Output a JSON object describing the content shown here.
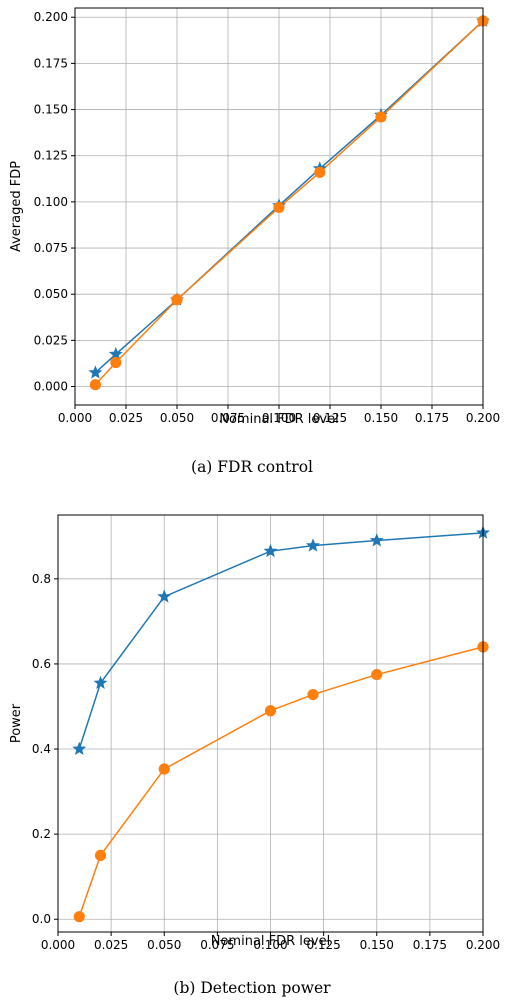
{
  "colors": {
    "series_0": "#1f77b4",
    "series_1": "#ff7f0e",
    "grid": "#b0b0b0",
    "axis": "#000000"
  },
  "chart_data": [
    {
      "type": "line",
      "caption": "(a) FDR control",
      "xlabel": "Nominal FDR level",
      "ylabel": "Averaged FDP",
      "xlim": [
        0.0,
        0.2
      ],
      "ylim": [
        -0.01,
        0.205
      ],
      "grid": true,
      "x_ticks": [
        "0.000",
        "0.025",
        "0.050",
        "0.075",
        "0.100",
        "0.125",
        "0.150",
        "0.175",
        "0.200"
      ],
      "y_ticks": [
        "0.000",
        "0.025",
        "0.050",
        "0.075",
        "0.100",
        "0.125",
        "0.150",
        "0.175",
        "0.200"
      ],
      "x": [
        0.01,
        0.02,
        0.05,
        0.1,
        0.12,
        0.15,
        0.2
      ],
      "series": [
        {
          "marker": "star",
          "color": "#1f77b4",
          "values": [
            0.0075,
            0.0175,
            0.047,
            0.098,
            0.118,
            0.147,
            0.198
          ]
        },
        {
          "marker": "circle",
          "color": "#ff7f0e",
          "values": [
            0.001,
            0.013,
            0.047,
            0.097,
            0.116,
            0.146,
            0.198
          ]
        }
      ]
    },
    {
      "type": "line",
      "caption": "(b) Detection power",
      "xlabel": "Nominal FDR level",
      "ylabel": "Power",
      "xlim": [
        0.0,
        0.2
      ],
      "ylim": [
        -0.03,
        0.95
      ],
      "grid": true,
      "x_ticks": [
        "0.000",
        "0.025",
        "0.050",
        "0.075",
        "0.100",
        "0.125",
        "0.150",
        "0.175",
        "0.200"
      ],
      "y_ticks": [
        "0.0",
        "0.2",
        "0.4",
        "0.6",
        "0.8"
      ],
      "x": [
        0.01,
        0.02,
        0.05,
        0.1,
        0.12,
        0.15,
        0.2
      ],
      "series": [
        {
          "marker": "star",
          "color": "#1f77b4",
          "values": [
            0.4,
            0.555,
            0.758,
            0.865,
            0.878,
            0.89,
            0.908
          ]
        },
        {
          "marker": "circle",
          "color": "#ff7f0e",
          "values": [
            0.006,
            0.15,
            0.353,
            0.49,
            0.528,
            0.575,
            0.64
          ]
        }
      ]
    }
  ]
}
